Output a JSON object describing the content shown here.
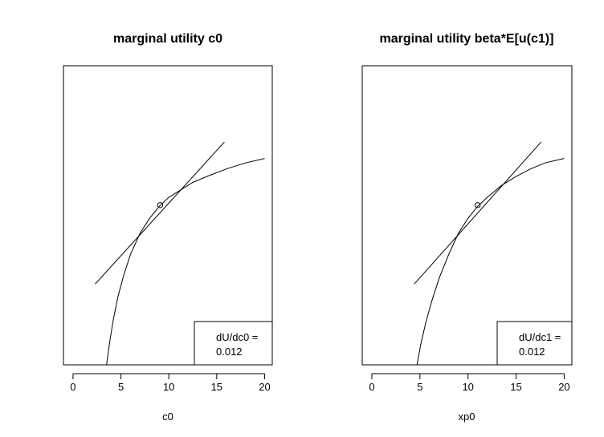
{
  "chart_data": [
    {
      "type": "line",
      "title": "marginal utility c0",
      "xlabel": "c0",
      "ylabel": "",
      "xlim": [
        -1,
        20.8
      ],
      "ylim": [
        0,
        1
      ],
      "xticks": [
        0,
        5,
        10,
        15,
        20
      ],
      "yaxis_visible": false,
      "series": [
        {
          "kind": "curve",
          "x": [
            3.5,
            3.8,
            4.2,
            4.7,
            5.3,
            6.0,
            7.0,
            8.0,
            9.0,
            10.0,
            11.0,
            12.5,
            14.0,
            16.0,
            18.0,
            20.0
          ],
          "y": [
            0.0,
            0.07,
            0.15,
            0.23,
            0.3,
            0.37,
            0.44,
            0.49,
            0.53,
            0.56,
            0.58,
            0.61,
            0.63,
            0.655,
            0.675,
            0.69
          ]
        },
        {
          "kind": "tangent",
          "x": [
            2.3,
            15.8
          ],
          "y": [
            0.27,
            0.745
          ]
        }
      ],
      "point": {
        "x": 9.1,
        "y": 0.534
      },
      "legend": {
        "position": "bottom-right",
        "lines": [
          "dU/dc0 =",
          "0.012"
        ]
      }
    },
    {
      "type": "line",
      "title": "marginal utility beta*E[u(c1)]",
      "xlabel": "xp0",
      "ylabel": "",
      "xlim": [
        -1,
        20.8
      ],
      "ylim": [
        0,
        1
      ],
      "xticks": [
        0,
        5,
        10,
        15,
        20
      ],
      "yaxis_visible": false,
      "series": [
        {
          "kind": "curve",
          "x": [
            4.7,
            5.1,
            5.6,
            6.2,
            7.0,
            8.0,
            9.0,
            10.0,
            11.0,
            12.0,
            13.5,
            15.0,
            16.5,
            18.0,
            20.0
          ],
          "y": [
            0.0,
            0.07,
            0.14,
            0.21,
            0.29,
            0.37,
            0.44,
            0.49,
            0.53,
            0.56,
            0.6,
            0.63,
            0.655,
            0.675,
            0.69
          ]
        },
        {
          "kind": "tangent",
          "x": [
            4.4,
            17.6
          ],
          "y": [
            0.27,
            0.745
          ]
        }
      ],
      "point": {
        "x": 11.0,
        "y": 0.534
      },
      "legend": {
        "position": "bottom-right",
        "lines": [
          "dU/dc1 =",
          "0.012"
        ]
      }
    }
  ]
}
